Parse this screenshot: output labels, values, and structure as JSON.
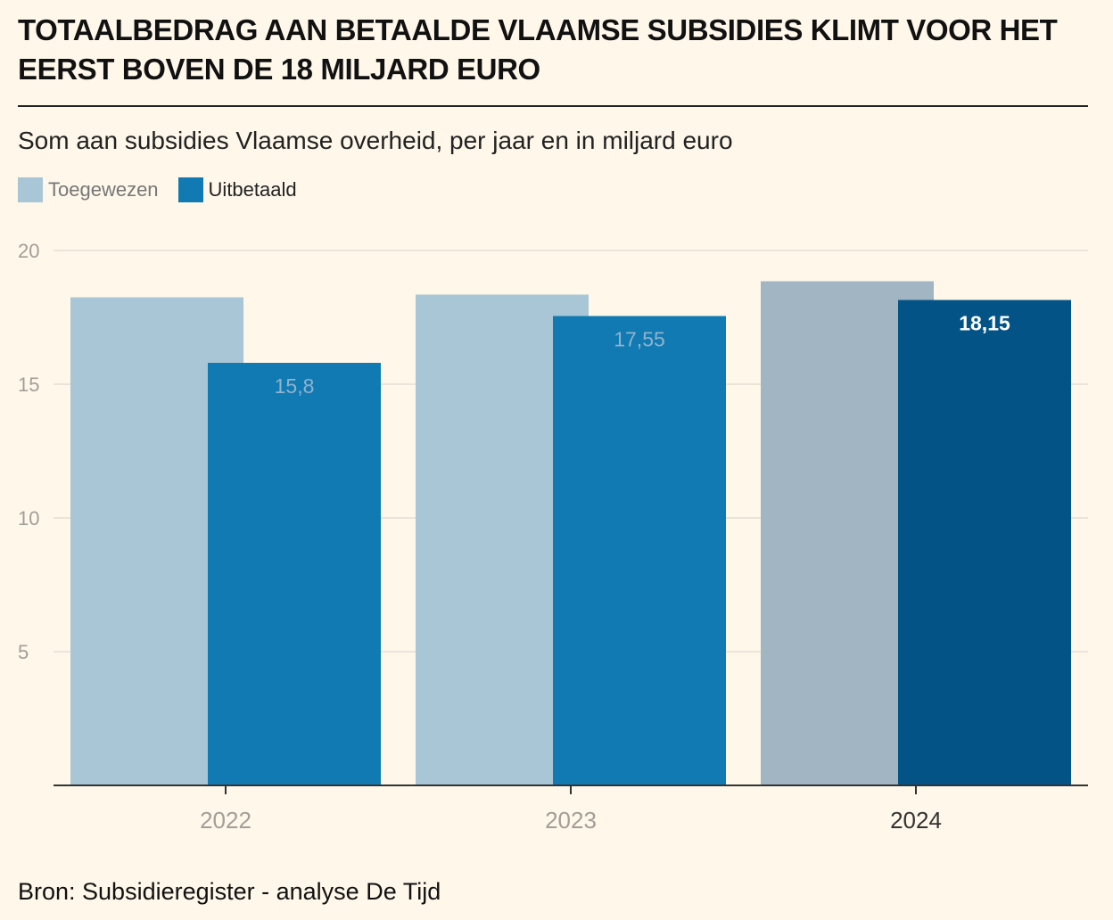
{
  "header": {
    "title": "TOTAALBEDRAG AAN BETAALDE VLAAMSE SUBSIDIES KLIMT VOOR HET EERST BOVEN DE 18 MILJARD EURO",
    "subtitle": "Som aan subsidies Vlaamse overheid, per jaar en in miljard euro"
  },
  "footer": {
    "source": "Bron: Subsidieregister - analyse De Tijd"
  },
  "colors": {
    "background": "#fef7ea",
    "toegewezen": "#a9c6d6",
    "toegewezen_highlight": "#a2b5c2",
    "uitbetaald": "#117ab2",
    "uitbetaald_highlight": "#035387",
    "label_muted": "#8fb3cd",
    "label_highlight": "#ffffff",
    "tick_muted": "#a29e98",
    "tick_highlight": "#333333",
    "grid": "#e6ded1",
    "axis": "#333333"
  },
  "chart_data": {
    "type": "bar",
    "categories": [
      "2022",
      "2023",
      "2024"
    ],
    "highlight_category": "2024",
    "series": [
      {
        "name": "Toegewezen",
        "values": [
          18.25,
          18.35,
          18.85
        ]
      },
      {
        "name": "Uitbetaald",
        "values": [
          15.8,
          17.55,
          18.15
        ]
      }
    ],
    "data_labels": [
      "15,8",
      "17,55",
      "18,15"
    ],
    "y_ticks": [
      5,
      10,
      15,
      20
    ],
    "y_tick_labels": [
      "5",
      "10",
      "15",
      "20"
    ],
    "ylim": [
      0,
      20
    ],
    "grid": true,
    "legend_position": "top-left",
    "xlabel": "",
    "ylabel": ""
  }
}
